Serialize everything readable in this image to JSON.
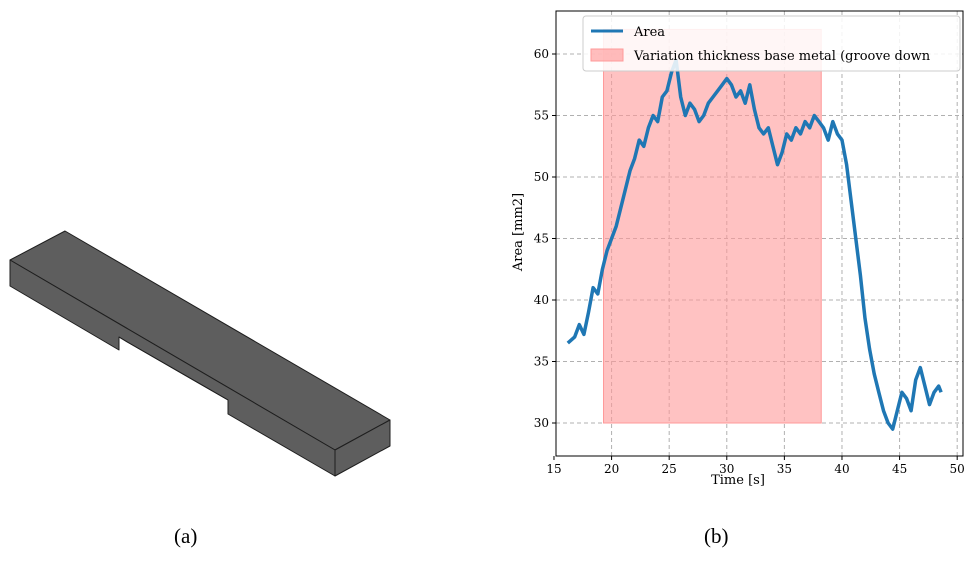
{
  "panels": {
    "a": "(a)",
    "b": "(b)"
  },
  "colors": {
    "solid_face": "#5e5e5e",
    "solid_edge": "#1e1e1e",
    "series": "#1f77b4",
    "band": "#ff9999"
  },
  "chart_data": {
    "type": "line",
    "title": "",
    "xlabel": "Time [s]",
    "ylabel": "Area [mm2]",
    "xlim": [
      16,
      49
    ],
    "ylim": [
      28,
      62
    ],
    "xticks": [
      15,
      20,
      25,
      30,
      35,
      40,
      45,
      50
    ],
    "yticks": [
      30,
      35,
      40,
      45,
      50,
      55,
      60
    ],
    "grid": true,
    "legend_position": "top-right",
    "series": [
      {
        "name": "Area",
        "x": [
          16.2,
          16.8,
          17.2,
          17.6,
          18.0,
          18.4,
          18.8,
          19.2,
          19.6,
          20.0,
          20.4,
          20.8,
          21.2,
          21.6,
          22.0,
          22.4,
          22.8,
          23.2,
          23.6,
          24.0,
          24.4,
          24.8,
          25.2,
          25.6,
          26.0,
          26.4,
          26.8,
          27.2,
          27.6,
          28.0,
          28.4,
          28.8,
          29.2,
          29.6,
          30.0,
          30.4,
          30.8,
          31.2,
          31.6,
          32.0,
          32.4,
          32.8,
          33.2,
          33.6,
          34.0,
          34.4,
          34.8,
          35.2,
          35.6,
          36.0,
          36.4,
          36.8,
          37.2,
          37.6,
          38.0,
          38.4,
          38.8,
          39.2,
          39.6,
          40.0,
          40.4,
          40.8,
          41.2,
          41.6,
          42.0,
          42.4,
          42.8,
          43.2,
          43.6,
          44.0,
          44.4,
          44.8,
          45.2,
          45.6,
          46.0,
          46.4,
          46.8,
          47.2,
          47.6,
          48.0,
          48.4,
          48.6
        ],
        "y": [
          36.5,
          37.0,
          38.0,
          37.2,
          39.0,
          41.0,
          40.5,
          42.5,
          44.0,
          45.0,
          46.0,
          47.5,
          49.0,
          50.5,
          51.5,
          53.0,
          52.5,
          54.0,
          55.0,
          54.5,
          56.5,
          57.0,
          58.5,
          59.5,
          56.5,
          55.0,
          56.0,
          55.5,
          54.5,
          55.0,
          56.0,
          56.5,
          57.0,
          57.5,
          58.0,
          57.5,
          56.5,
          57.0,
          56.0,
          57.5,
          55.5,
          54.0,
          53.5,
          54.0,
          52.5,
          51.0,
          52.0,
          53.5,
          53.0,
          54.0,
          53.5,
          54.5,
          54.0,
          55.0,
          54.5,
          54.0,
          53.0,
          54.5,
          53.5,
          53.0,
          51.0,
          48.0,
          45.0,
          42.0,
          38.5,
          36.0,
          34.0,
          32.5,
          31.0,
          30.0,
          29.5,
          31.0,
          32.5,
          32.0,
          31.0,
          33.5,
          34.5,
          33.0,
          31.5,
          32.5,
          33.0,
          32.5
        ]
      }
    ],
    "band": {
      "name": "Variation thickness base metal (groove down",
      "x": [
        19.3,
        38.2
      ],
      "y": [
        30,
        62
      ]
    }
  }
}
